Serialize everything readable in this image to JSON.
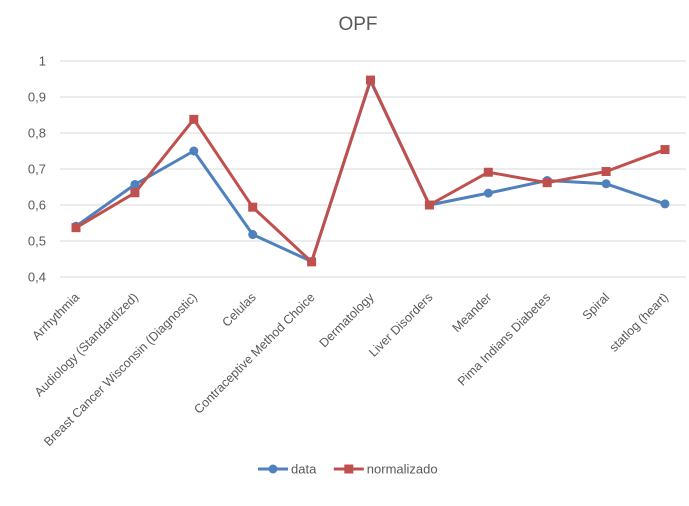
{
  "chart_data": {
    "type": "line",
    "title": "OPF",
    "categories": [
      "Arrhythmia",
      "Audiology (Standardized)",
      "Breast Cancer Wisconsin (Diagnostic)",
      "Celulas",
      "Contraceptive Method Choice",
      "Dermatology",
      "Liver Disorders",
      "Meander",
      "Pima Indians Diabetes",
      "Spiral",
      "statlog (heart)"
    ],
    "series": [
      {
        "name": "data",
        "color": "#4f81bd",
        "marker": "circle",
        "values": [
          0.541,
          0.657,
          0.75,
          0.518,
          0.443,
          0.945,
          0.6,
          0.633,
          0.668,
          0.659,
          0.603
        ]
      },
      {
        "name": "normalizado",
        "color": "#c0504d",
        "marker": "square",
        "values": [
          0.537,
          0.634,
          0.838,
          0.594,
          0.442,
          0.947,
          0.6,
          0.691,
          0.662,
          0.693,
          0.754
        ]
      }
    ],
    "ylim": [
      0.4,
      1.0
    ],
    "yticks": [
      0.4,
      0.5,
      0.6,
      0.7,
      0.8,
      0.9,
      1.0
    ],
    "ytick_labels": [
      "0,4",
      "0,5",
      "0,6",
      "0,7",
      "0,8",
      "0,9",
      "1"
    ],
    "grid": true,
    "legend_position": "bottom"
  }
}
